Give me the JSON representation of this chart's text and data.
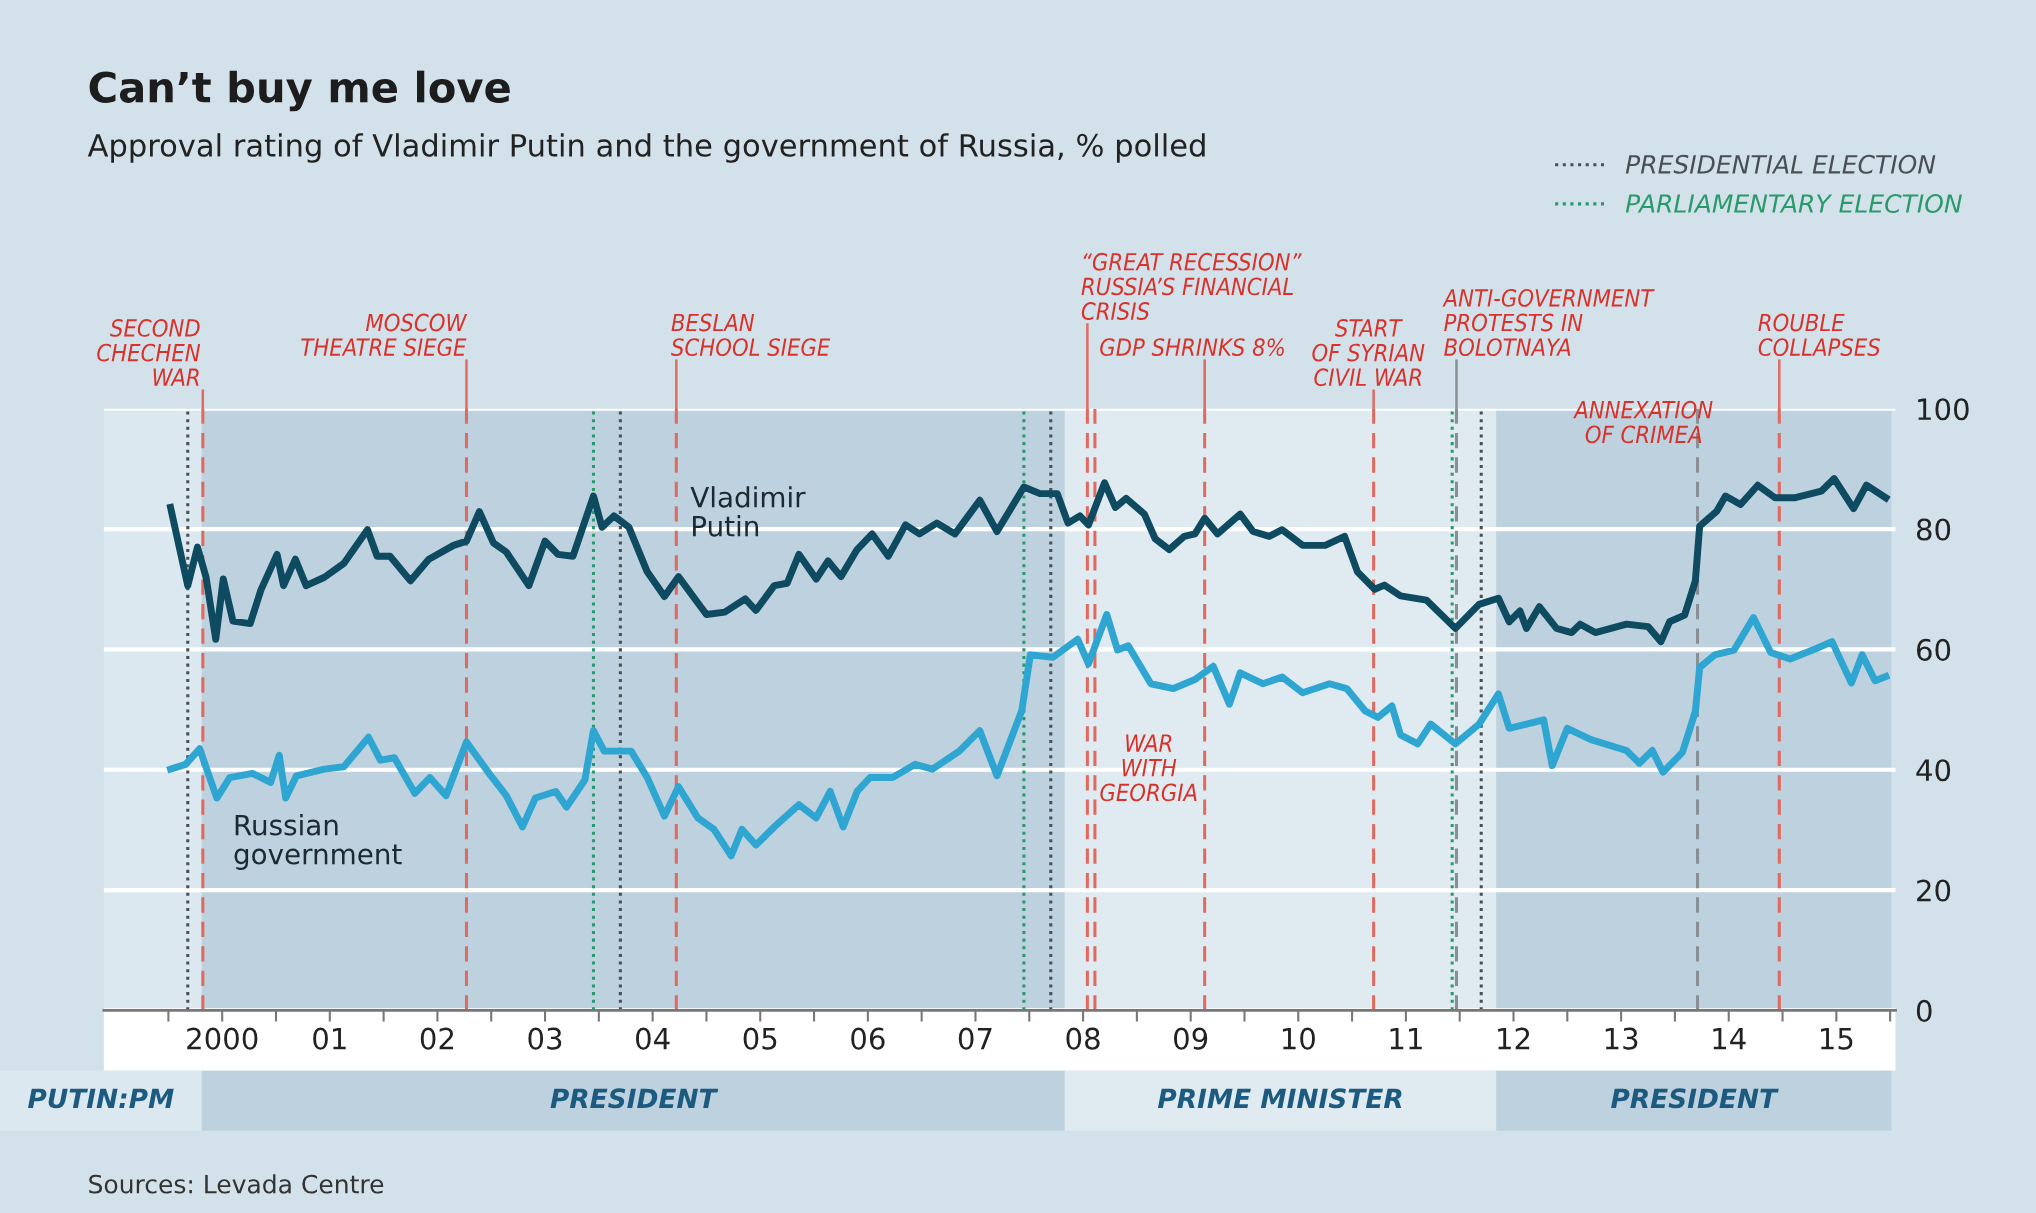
{
  "chart_data": {
    "type": "line",
    "title": "Can’t buy me love",
    "subtitle": "Approval rating of Vladimir Putin and the government of Russia, % polled",
    "annotations": [
      "Sources: Levada Centre"
    ],
    "xlim": [
      1998.9,
      2015.55
    ],
    "ylim": [
      0,
      100
    ],
    "yticks": [
      0,
      20,
      40,
      60,
      80,
      100
    ],
    "xticks": [
      {
        "value": 1999.5,
        "label": null
      },
      {
        "value": 2000,
        "label": "2000"
      },
      {
        "value": 2000.5,
        "label": null
      },
      {
        "value": 2001,
        "label": "01"
      },
      {
        "value": 2001.5,
        "label": null
      },
      {
        "value": 2002,
        "label": "02"
      },
      {
        "value": 2002.5,
        "label": null
      },
      {
        "value": 2003,
        "label": "03"
      },
      {
        "value": 2003.5,
        "label": null
      },
      {
        "value": 2004,
        "label": "04"
      },
      {
        "value": 2004.5,
        "label": null
      },
      {
        "value": 2005,
        "label": "05"
      },
      {
        "value": 2005.5,
        "label": null
      },
      {
        "value": 2006,
        "label": "06"
      },
      {
        "value": 2006.5,
        "label": null
      },
      {
        "value": 2007,
        "label": "07"
      },
      {
        "value": 2007.5,
        "label": null
      },
      {
        "value": 2008,
        "label": "08"
      },
      {
        "value": 2008.5,
        "label": null
      },
      {
        "value": 2009,
        "label": "09"
      },
      {
        "value": 2009.5,
        "label": null
      },
      {
        "value": 2010,
        "label": "10"
      },
      {
        "value": 2010.5,
        "label": null
      },
      {
        "value": 2011,
        "label": "11"
      },
      {
        "value": 2011.5,
        "label": null
      },
      {
        "value": 2012,
        "label": "12"
      },
      {
        "value": 2012.5,
        "label": null
      },
      {
        "value": 2013,
        "label": "13"
      },
      {
        "value": 2013.5,
        "label": null
      },
      {
        "value": 2014,
        "label": "14"
      },
      {
        "value": 2014.5,
        "label": null
      },
      {
        "value": 2015,
        "label": "15"
      },
      {
        "value": 2015.5,
        "label": null
      }
    ],
    "grid": "y",
    "legend": "top right",
    "series": [
      {
        "name": "Vladimir\nPutin",
        "color": "#0e4a60",
        "x": [
          1999.52,
          1999.68,
          1999.77,
          1999.85,
          1999.94,
          2000.01,
          2000.1,
          2000.26,
          2000.36,
          2000.51,
          2000.57,
          2000.68,
          2000.78,
          2000.95,
          2001.13,
          2001.35,
          2001.44,
          2001.56,
          2001.75,
          2001.92,
          2002.15,
          2002.27,
          2002.39,
          2002.52,
          2002.64,
          2002.85,
          2003.0,
          2003.12,
          2003.26,
          2003.45,
          2003.53,
          2003.64,
          2003.78,
          2003.95,
          2004.11,
          2004.24,
          2004.5,
          2004.67,
          2004.86,
          2004.96,
          2005.13,
          2005.25,
          2005.36,
          2005.52,
          2005.63,
          2005.75,
          2005.9,
          2006.04,
          2006.19,
          2006.35,
          2006.48,
          2006.64,
          2006.81,
          2007.04,
          2007.2,
          2007.45,
          2007.6,
          2007.76,
          2007.86,
          2007.97,
          2008.05,
          2008.2,
          2008.3,
          2008.4,
          2008.57,
          2008.67,
          2008.8,
          2008.94,
          2009.04,
          2009.13,
          2009.25,
          2009.46,
          2009.58,
          2009.73,
          2009.85,
          2010.04,
          2010.25,
          2010.43,
          2010.55,
          2010.71,
          2010.8,
          2010.95,
          2011.19,
          2011.46,
          2011.68,
          2011.86,
          2011.96,
          2012.06,
          2012.12,
          2012.24,
          2012.4,
          2012.54,
          2012.62,
          2012.76,
          2013.05,
          2013.25,
          2013.37,
          2013.45,
          2013.59,
          2013.69,
          2013.73,
          2013.89,
          2013.97,
          2014.11,
          2014.27,
          2014.43,
          2014.61,
          2014.86,
          2014.98,
          2015.16,
          2015.28,
          2015.46
        ],
        "values": [
          83.6,
          70.6,
          77,
          72,
          61.7,
          71.7,
          64.7,
          64.3,
          69.9,
          75.8,
          70.6,
          75,
          70.6,
          72,
          74.3,
          79.9,
          75.5,
          75.5,
          71.4,
          75,
          77.3,
          78,
          82.9,
          77.7,
          76.2,
          70.6,
          78,
          75.8,
          75.5,
          85.5,
          80.3,
          82.2,
          80.3,
          72.9,
          68.8,
          72.1,
          65.8,
          66.2,
          68.4,
          66.5,
          70.6,
          71,
          75.8,
          71.7,
          74.7,
          72.1,
          76.6,
          79.2,
          75.5,
          80.7,
          79.2,
          81,
          79.2,
          84.8,
          79.6,
          87,
          85.9,
          85.9,
          81,
          82.2,
          80.7,
          87.7,
          83.6,
          85.1,
          82.5,
          78.4,
          76.6,
          78.8,
          79.2,
          81.8,
          79.2,
          82.5,
          79.6,
          78.8,
          79.9,
          77.3,
          77.3,
          78.8,
          72.9,
          70,
          70.7,
          68.9,
          68.2,
          63.5,
          67.5,
          68.5,
          64.6,
          66.4,
          63.5,
          67.1,
          63.5,
          62.8,
          64.2,
          62.8,
          64.2,
          63.8,
          61.3,
          64.6,
          65.7,
          71.4,
          80.5,
          83,
          85.5,
          84.1,
          87.3,
          85.2,
          85.2,
          86.3,
          88.4,
          83.4,
          87.3,
          85.2
        ]
      },
      {
        "name": "Russian\ngovernment",
        "color": "#2fa6d2",
        "x": [
          1999.52,
          1999.66,
          1999.79,
          1999.95,
          2000.07,
          2000.28,
          2000.45,
          2000.53,
          2000.59,
          2000.69,
          2000.95,
          2001.13,
          2001.36,
          2001.47,
          2001.6,
          2001.79,
          2001.93,
          2002.08,
          2002.27,
          2002.48,
          2002.64,
          2002.79,
          2002.91,
          2003.1,
          2003.2,
          2003.37,
          2003.45,
          2003.55,
          2003.8,
          2003.95,
          2004.11,
          2004.24,
          2004.42,
          2004.57,
          2004.73,
          2004.83,
          2004.96,
          2005.13,
          2005.36,
          2005.52,
          2005.65,
          2005.77,
          2005.9,
          2006.02,
          2006.23,
          2006.44,
          2006.6,
          2006.85,
          2007.04,
          2007.2,
          2007.43,
          2007.51,
          2007.72,
          2007.95,
          2008.05,
          2008.22,
          2008.32,
          2008.42,
          2008.63,
          2008.84,
          2009.04,
          2009.21,
          2009.36,
          2009.46,
          2009.67,
          2009.85,
          2010.04,
          2010.29,
          2010.45,
          2010.62,
          2010.74,
          2010.87,
          2010.95,
          2011.11,
          2011.23,
          2011.46,
          2011.68,
          2011.86,
          2011.96,
          2012.12,
          2012.28,
          2012.36,
          2012.5,
          2012.72,
          2013.05,
          2013.17,
          2013.29,
          2013.39,
          2013.57,
          2013.69,
          2013.73,
          2013.87,
          2014.05,
          2014.23,
          2014.39,
          2014.57,
          2014.82,
          2014.96,
          2015.14,
          2015.24,
          2015.36,
          2015.46
        ],
        "values": [
          40.1,
          40.9,
          43.5,
          35.3,
          38.7,
          39.4,
          37.9,
          42.4,
          35.3,
          39,
          40.1,
          40.5,
          45.4,
          41.6,
          42,
          36.1,
          38.7,
          35.7,
          44.6,
          39.4,
          35.7,
          30.5,
          35.3,
          36.4,
          33.8,
          38.3,
          46.5,
          43.1,
          43.1,
          38.7,
          32.3,
          37.2,
          32,
          30.1,
          25.7,
          30.1,
          27.5,
          30.5,
          34.2,
          32,
          36.4,
          30.5,
          36.4,
          38.7,
          38.7,
          40.9,
          40.1,
          43.1,
          46.5,
          39,
          49.8,
          59.1,
          58.7,
          61.7,
          57.6,
          65.8,
          59.9,
          60.6,
          54.3,
          53.5,
          55,
          57.2,
          50.9,
          56.1,
          54.3,
          55.4,
          52.8,
          54.3,
          53.5,
          49.8,
          48.7,
          50.6,
          45.8,
          44.3,
          47.6,
          44.3,
          47.6,
          52.6,
          46.9,
          47.6,
          48.3,
          40.7,
          46.9,
          45,
          43.2,
          41.1,
          43.2,
          39.6,
          42.9,
          49.7,
          57,
          59.1,
          59.9,
          65.3,
          59.5,
          58.4,
          60.2,
          61.3,
          54.4,
          59.1,
          54.8,
          55.5
        ]
      }
    ],
    "ref_lines": [
      {
        "axis": "x",
        "value": 1999.68,
        "label": "PRESIDENTIAL ELECTION",
        "color": "#4a4f55",
        "line_style": "dotted"
      },
      {
        "axis": "x",
        "value": 1999.82,
        "label": "SECOND\nCHECHEN\nWAR",
        "color": "#e06a60",
        "line_style": "dashed"
      },
      {
        "axis": "x",
        "value": 2002.27,
        "label": "MOSCOW\nTHEATRE SIEGE",
        "color": "#e06a60",
        "line_style": "dashed"
      },
      {
        "axis": "x",
        "value": 2003.45,
        "label": "PARLIAMENTARY ELECTION",
        "color": "#2a9a6a",
        "line_style": "dotted"
      },
      {
        "axis": "x",
        "value": 2003.7,
        "label": null,
        "color": "#4a4f55",
        "line_style": "dotted"
      },
      {
        "axis": "x",
        "value": 2004.22,
        "label": "BESLAN\nSCHOOL SIEGE",
        "color": "#e06a60",
        "line_style": "dashed"
      },
      {
        "axis": "x",
        "value": 2007.45,
        "label": null,
        "color": "#2a9a6a",
        "line_style": "dotted"
      },
      {
        "axis": "x",
        "value": 2007.7,
        "label": null,
        "color": "#4a4f55",
        "line_style": "dotted"
      },
      {
        "axis": "x",
        "value": 2008.04,
        "label": "“GREAT RECESSION”\nRUSSIA’S FINANCIAL\nCRISIS",
        "color": "#e06a60",
        "line_style": "dashed"
      },
      {
        "axis": "x",
        "value": 2008.11,
        "label": "WAR\nWITH\nGEORGIA",
        "color": "#e06a60",
        "line_style": "dashed"
      },
      {
        "axis": "x",
        "value": 2009.13,
        "label": "GDP SHRINKS 8%",
        "color": "#e06a60",
        "line_style": "dashed"
      },
      {
        "axis": "x",
        "value": 2010.7,
        "label": "START\nOF SYRIAN\nCIVIL WAR",
        "color": "#e06a60",
        "line_style": "dashed"
      },
      {
        "axis": "x",
        "value": 2011.43,
        "label": null,
        "color": "#2a9a6a",
        "line_style": "dotted"
      },
      {
        "axis": "x",
        "value": 2011.47,
        "label": "ANTI-GOVERNMENT\nPROTESTS IN\nBOLOTNAYA",
        "color": "#8a8f96",
        "line_style": "dashed"
      },
      {
        "axis": "x",
        "value": 2011.7,
        "label": null,
        "color": "#4a4f55",
        "line_style": "dotted"
      },
      {
        "axis": "x",
        "value": 2013.71,
        "label": "ANNEXATION\nOF CRIMEA",
        "color": "#8a8f96",
        "line_style": "dashed"
      },
      {
        "axis": "x",
        "value": 2014.47,
        "label": "ROUBLE\nCOLLAPSES",
        "color": "#e06a60",
        "line_style": "dashed"
      }
    ],
    "bands": [
      {
        "axis": "x",
        "from": 1998.9,
        "to": 1999.81,
        "label": "PUTIN:PM",
        "color": "#dce8ef"
      },
      {
        "axis": "x",
        "from": 1999.81,
        "to": 2007.83,
        "label": "PRESIDENT",
        "color": "#bdd1de"
      },
      {
        "axis": "x",
        "from": 2007.83,
        "to": 2011.84,
        "label": "PRIME MINISTER",
        "color": "#dfeaf1"
      },
      {
        "axis": "x",
        "from": 2011.84,
        "to": 2015.51,
        "label": "PRESIDENT",
        "color": "#bdd1de"
      }
    ]
  }
}
